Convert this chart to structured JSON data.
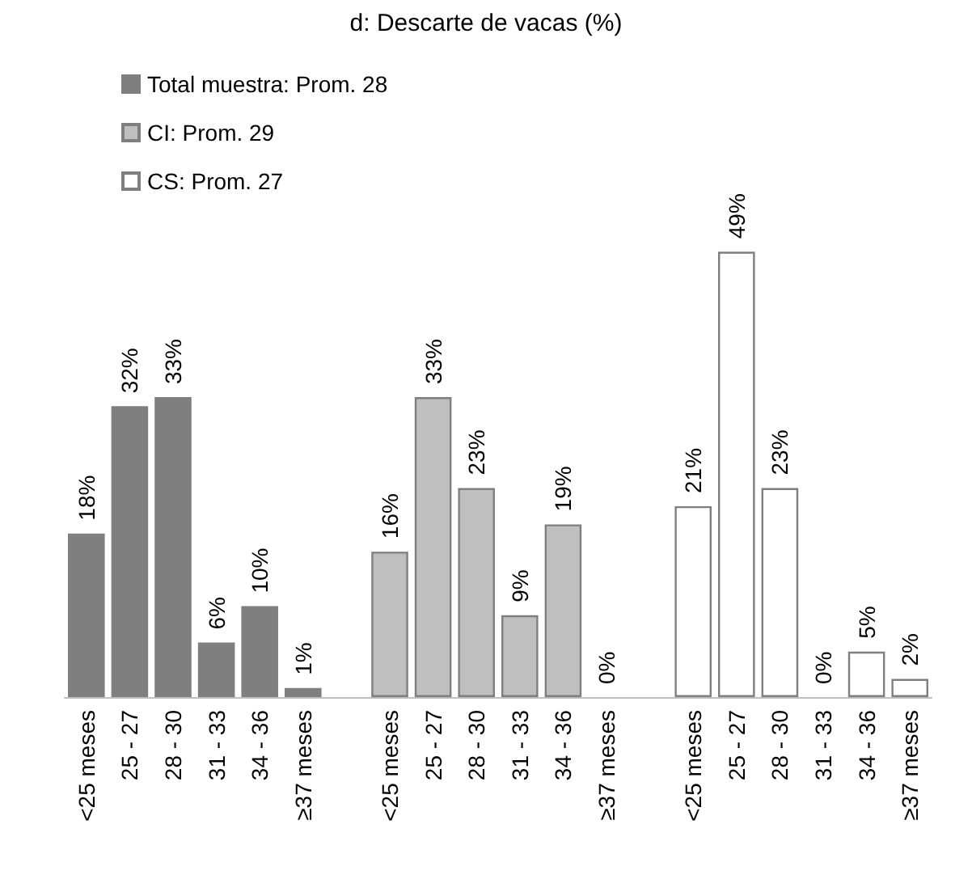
{
  "chart_data": {
    "type": "bar",
    "title": "d: Descarte de vacas (%)",
    "categories": [
      "<25 meses",
      "25 - 27",
      "28 - 30",
      "31 - 33",
      "34 - 36",
      "≥37 meses",
      null,
      "<25 meses",
      "25 - 27",
      "28 - 30",
      "31 - 33",
      "34 - 36",
      "≥37 meses",
      null,
      "<25 meses",
      "25 - 27",
      "28 - 30",
      "31 - 33",
      "34 - 36",
      "≥37 meses"
    ],
    "stacked": true,
    "legend": "top left",
    "series": [
      {
        "name": "Total muestra: Prom. 28",
        "color": "#7f7f7f",
        "values": [
          18,
          32,
          33,
          6,
          10,
          1,
          null,
          null,
          null,
          null,
          null,
          null,
          null,
          null,
          null,
          null,
          null,
          null,
          null,
          null
        ],
        "value_labels": [
          "18%",
          "32%",
          "33%",
          "6%",
          "10%",
          "1%",
          null,
          null,
          null,
          null,
          null,
          null,
          null,
          null,
          null,
          null,
          null,
          null,
          null,
          null
        ]
      },
      {
        "name": "CI: Prom. 29",
        "color": "#bfbfbf",
        "values": [
          null,
          null,
          null,
          null,
          null,
          null,
          null,
          16,
          33,
          23,
          9,
          19,
          0,
          null,
          null,
          null,
          null,
          null,
          null,
          null
        ],
        "value_labels": [
          null,
          null,
          null,
          null,
          null,
          null,
          null,
          "16%",
          "33%",
          "23%",
          "9%",
          "19%",
          "0%",
          null,
          null,
          null,
          null,
          null,
          null,
          null
        ]
      },
      {
        "name": "CS: Prom. 27",
        "color": "#ffffff",
        "values": [
          null,
          null,
          null,
          null,
          null,
          null,
          null,
          null,
          null,
          null,
          null,
          null,
          null,
          null,
          21,
          49,
          23,
          0,
          5,
          2
        ],
        "value_labels": [
          null,
          null,
          null,
          null,
          null,
          null,
          null,
          null,
          null,
          null,
          null,
          null,
          null,
          null,
          "21%",
          "49%",
          "23%",
          "0%",
          "5%",
          "2%"
        ]
      }
    ]
  }
}
